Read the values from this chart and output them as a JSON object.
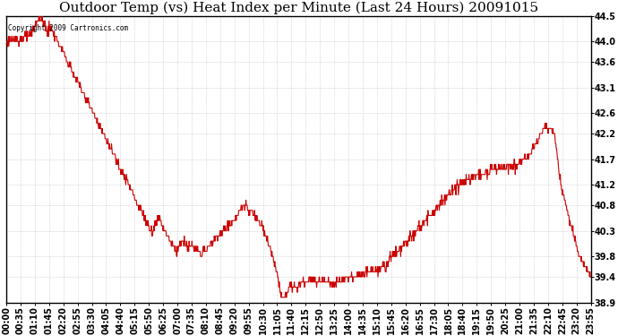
{
  "title": "Outdoor Temp (vs) Heat Index per Minute (Last 24 Hours) 20091015",
  "copyright_text": "Copyright 2009 Cartronics.com",
  "line_color": "#cc0000",
  "background_color": "#ffffff",
  "grid_color": "#aaaaaa",
  "ylim": [
    38.9,
    44.5
  ],
  "yticks": [
    38.9,
    39.4,
    39.8,
    40.3,
    40.8,
    41.2,
    41.7,
    42.2,
    42.6,
    43.1,
    43.6,
    44.0,
    44.5
  ],
  "title_fontsize": 11,
  "tick_fontsize": 7,
  "x_labels": [
    "00:00",
    "00:35",
    "01:10",
    "01:45",
    "02:20",
    "02:55",
    "03:30",
    "04:05",
    "04:40",
    "05:15",
    "05:50",
    "06:25",
    "07:00",
    "07:35",
    "08:10",
    "08:45",
    "09:20",
    "09:55",
    "10:30",
    "11:05",
    "11:40",
    "12:15",
    "12:50",
    "13:25",
    "14:00",
    "14:35",
    "15:10",
    "15:45",
    "16:20",
    "16:55",
    "17:30",
    "18:05",
    "18:40",
    "19:15",
    "19:50",
    "20:25",
    "21:00",
    "21:35",
    "22:10",
    "22:45",
    "23:20",
    "23:55"
  ]
}
